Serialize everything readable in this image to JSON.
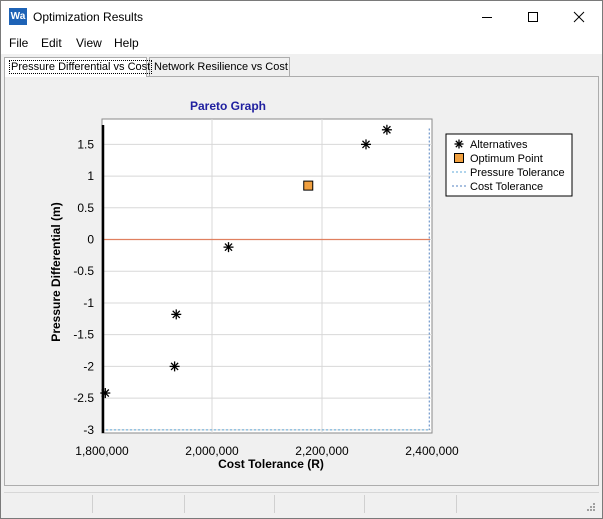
{
  "window": {
    "title": "Optimization Results",
    "app_icon_text": "Wa"
  },
  "menu": [
    "File",
    "Edit",
    "View",
    "Help"
  ],
  "tabs": [
    {
      "label": "Pressure Differential vs Cost",
      "active": true
    },
    {
      "label": "Network Resilience vs Cost",
      "active": false
    }
  ],
  "chart_data": {
    "type": "scatter",
    "title": "Pareto Graph",
    "xlabel": "Cost Tolerance (R)",
    "ylabel": "Pressure Differential (m)",
    "xlim": [
      1800000,
      2400000
    ],
    "ylim": [
      -3.05,
      1.9
    ],
    "x_ticks": [
      1800000,
      2000000,
      2200000,
      2400000
    ],
    "x_tick_labels": [
      "1,800,000",
      "2,000,000",
      "2,200,000",
      "2,400,000"
    ],
    "y_ticks": [
      1.5,
      1,
      0.5,
      0,
      -0.5,
      -1,
      -1.5,
      -2,
      -2.5,
      -3
    ],
    "y_tick_labels": [
      "1.5",
      "1",
      "0.5",
      "0",
      "-0.5",
      "-1",
      "-1.5",
      "-2",
      "-2.5",
      "-3"
    ],
    "grid": true,
    "legend_position": "top-right",
    "series": [
      {
        "name": "Alternatives",
        "marker": "asterisk",
        "color": "#000000",
        "points": [
          {
            "x": 1806000,
            "y": -2.42
          },
          {
            "x": 1932000,
            "y": -2.0
          },
          {
            "x": 1935000,
            "y": -1.18
          },
          {
            "x": 2030000,
            "y": -0.12
          },
          {
            "x": 2280000,
            "y": 1.5
          },
          {
            "x": 2318000,
            "y": 1.73
          }
        ]
      },
      {
        "name": "Optimum Point",
        "marker": "square",
        "color": "#f0a040",
        "points": [
          {
            "x": 2175000,
            "y": 0.85
          }
        ]
      },
      {
        "name": "Pressure Tolerance",
        "marker": "line",
        "color": "#5fa8d8",
        "line": {
          "orientation": "horizontal",
          "value": -3
        }
      },
      {
        "name": "Cost Tolerance",
        "marker": "line",
        "color": "#5080c0",
        "line": {
          "orientation": "vertical",
          "value": 2395000
        }
      }
    ],
    "zero_line": {
      "value": 0,
      "color": "#e08060"
    }
  }
}
